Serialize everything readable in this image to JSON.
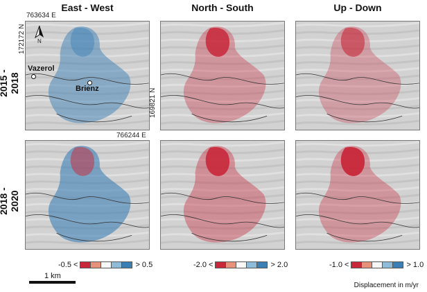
{
  "columns": [
    "East - West",
    "North - South",
    "Up - Down"
  ],
  "rows": [
    "2015 - 2018",
    "2018 - 2020"
  ],
  "coordinates": {
    "top_easting": "763634 E",
    "left_northing": "172172 N",
    "right_northing": "169821 N",
    "bottom_easting": "766244 E"
  },
  "places": {
    "vazerol": "Vazerol",
    "brienz": "Brienz"
  },
  "north_arrow": "N",
  "legends": [
    {
      "min_label": "-0.5 <",
      "max_label": "> 0.5"
    },
    {
      "min_label": "-2.0 <",
      "max_label": "> 2.0"
    },
    {
      "min_label": "-1.0 <",
      "max_label": "> 1.0"
    }
  ],
  "legend_colors": [
    "#c8283a",
    "#e8917a",
    "#f7f7f7",
    "#8ebcd8",
    "#3c7fb5"
  ],
  "scale_label": "1 km",
  "units_label": "Displacement in m/yr",
  "colors": {
    "red": "#c8283a",
    "blue": "#3c7fb5",
    "hillshade": "#d4d4d4"
  }
}
